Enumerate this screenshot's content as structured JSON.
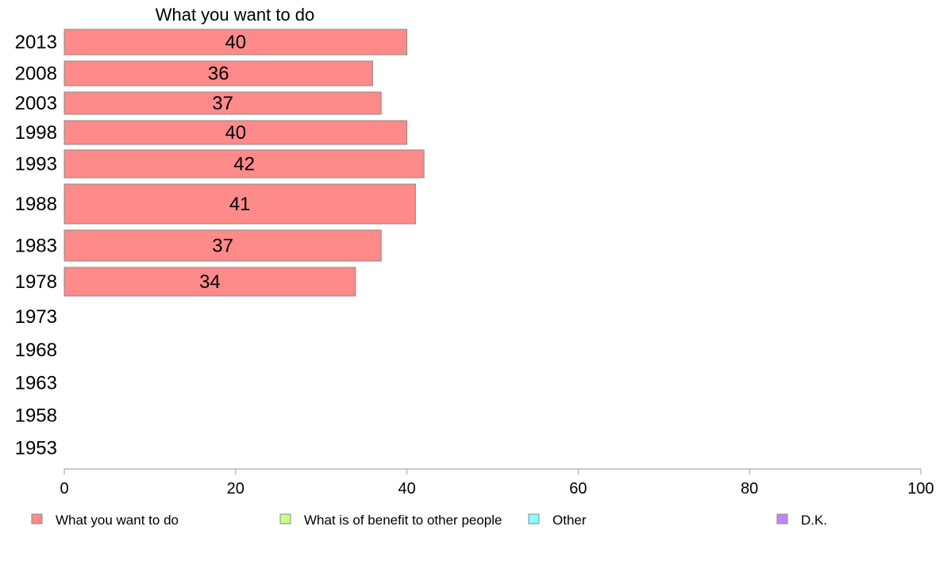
{
  "chart_data": {
    "type": "bar",
    "orientation": "horizontal",
    "title": "What you want to do",
    "categories": [
      "2013",
      "2008",
      "2003",
      "1998",
      "1993",
      "1988",
      "1983",
      "1978",
      "1973",
      "1968",
      "1963",
      "1958",
      "1953"
    ],
    "series": [
      {
        "name": "What you want to do",
        "color": "#ff8a8a",
        "values": [
          40,
          36,
          37,
          40,
          42,
          41,
          37,
          34,
          null,
          null,
          null,
          null,
          null
        ]
      }
    ],
    "xlim": [
      0,
      100
    ],
    "xticks": [
      "0",
      "20",
      "40",
      "60",
      "80",
      "100"
    ],
    "grid": false,
    "legend_position": "bottom",
    "legend": [
      {
        "label": "What you want to do",
        "color": "#ff8a8a"
      },
      {
        "label": "What is of benefit to other people",
        "color": "#ccff88"
      },
      {
        "label": "Other",
        "color": "#88ffff"
      },
      {
        "label": "D.K.",
        "color": "#bb88ff"
      }
    ]
  }
}
